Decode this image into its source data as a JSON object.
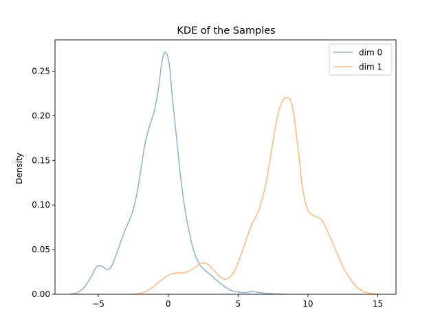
{
  "chart_data": {
    "type": "line",
    "title": "KDE of the Samples",
    "xlabel": "",
    "ylabel": "Density",
    "xlim": [
      -8.1,
      16.3
    ],
    "ylim": [
      0,
      0.285
    ],
    "xticks": [
      -5,
      0,
      5,
      10,
      15
    ],
    "yticks": [
      0.0,
      0.05,
      0.1,
      0.15,
      0.2,
      0.25
    ],
    "ytick_labels": [
      "0.00",
      "0.05",
      "0.10",
      "0.15",
      "0.20",
      "0.25"
    ],
    "grid": false,
    "legend_position": "top-right",
    "series": [
      {
        "name": "dim 0",
        "color": "#8bb8d6",
        "x": [
          -7.0,
          -6.5,
          -6.0,
          -5.5,
          -5.2,
          -5.0,
          -4.7,
          -4.4,
          -4.1,
          -3.7,
          -3.3,
          -3.0,
          -2.6,
          -2.3,
          -2.0,
          -1.7,
          -1.4,
          -1.2,
          -1.0,
          -0.7,
          -0.5,
          -0.3,
          -0.1,
          0.1,
          0.3,
          0.6,
          0.9,
          1.2,
          1.5,
          1.8,
          2.1,
          2.4,
          2.7,
          3.0,
          3.3,
          3.6,
          4.0,
          4.4,
          4.8,
          5.2,
          5.6,
          6.0,
          6.5,
          7.0,
          7.5,
          8.0,
          8.2
        ],
        "y": [
          0.0,
          0.002,
          0.008,
          0.02,
          0.029,
          0.032,
          0.031,
          0.028,
          0.03,
          0.045,
          0.063,
          0.075,
          0.09,
          0.108,
          0.135,
          0.165,
          0.185,
          0.195,
          0.205,
          0.23,
          0.255,
          0.27,
          0.269,
          0.255,
          0.22,
          0.175,
          0.13,
          0.095,
          0.07,
          0.05,
          0.038,
          0.03,
          0.026,
          0.022,
          0.018,
          0.014,
          0.009,
          0.005,
          0.003,
          0.002,
          0.002,
          0.003,
          0.002,
          0.001,
          0.0005,
          0.0001,
          0.0
        ]
      },
      {
        "name": "dim 1",
        "color": "#ffbb80",
        "x": [
          -2.5,
          -2.0,
          -1.5,
          -1.0,
          -0.5,
          0.0,
          0.3,
          0.7,
          1.0,
          1.5,
          2.0,
          2.4,
          2.8,
          3.2,
          3.6,
          4.0,
          4.4,
          4.8,
          5.2,
          5.6,
          6.0,
          6.5,
          7.0,
          7.4,
          7.7,
          8.0,
          8.3,
          8.6,
          8.8,
          9.0,
          9.2,
          9.4,
          9.6,
          9.9,
          10.2,
          10.6,
          11.0,
          11.3,
          11.7,
          12.1,
          12.5,
          13.0,
          13.5,
          14.0,
          14.5,
          15.0
        ],
        "y": [
          0.0,
          0.001,
          0.004,
          0.009,
          0.016,
          0.021,
          0.023,
          0.024,
          0.024,
          0.026,
          0.031,
          0.035,
          0.034,
          0.028,
          0.021,
          0.017,
          0.019,
          0.028,
          0.044,
          0.062,
          0.079,
          0.095,
          0.125,
          0.162,
          0.19,
          0.21,
          0.219,
          0.22,
          0.215,
          0.2,
          0.175,
          0.148,
          0.12,
          0.098,
          0.09,
          0.087,
          0.083,
          0.074,
          0.06,
          0.045,
          0.031,
          0.018,
          0.008,
          0.003,
          0.001,
          0.0
        ]
      }
    ]
  }
}
